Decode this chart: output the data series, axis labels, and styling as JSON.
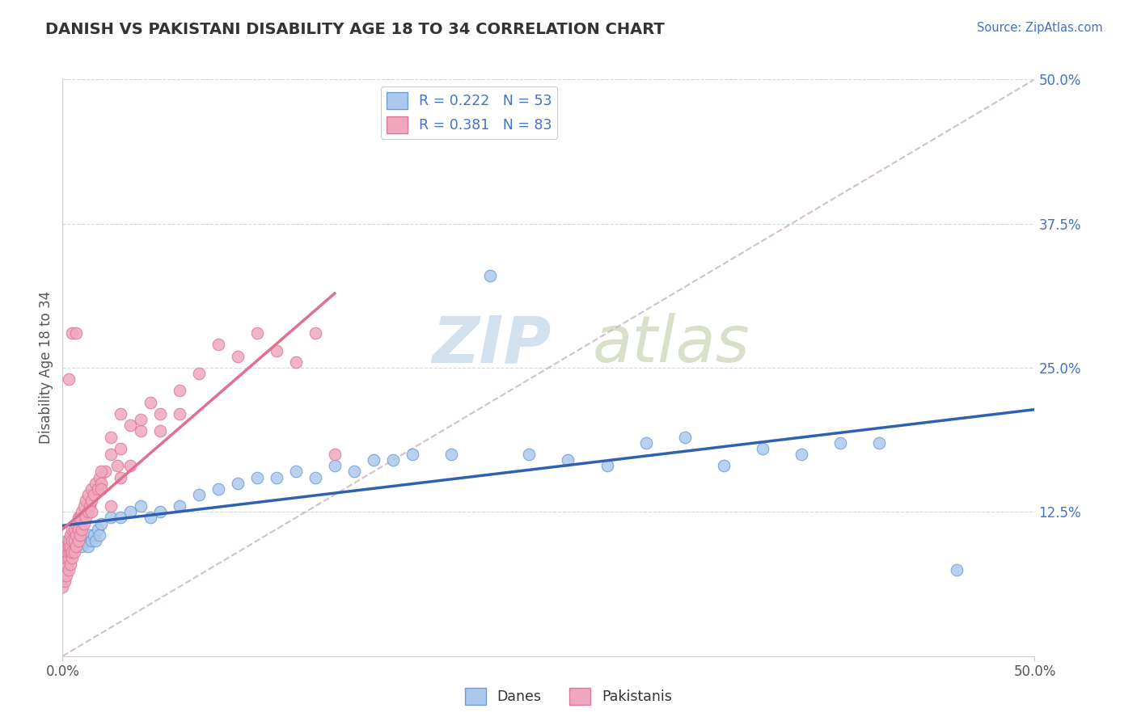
{
  "title": "DANISH VS PAKISTANI DISABILITY AGE 18 TO 34 CORRELATION CHART",
  "source_text": "Source: ZipAtlas.com",
  "ylabel": "Disability Age 18 to 34",
  "xlim": [
    0.0,
    0.5
  ],
  "ylim": [
    0.0,
    0.5
  ],
  "danes_color": "#adc8ed",
  "danes_edge": "#6a9fd8",
  "pakistanis_color": "#f0a8be",
  "pakistanis_edge": "#e07898",
  "danes_R": 0.222,
  "danes_N": 53,
  "pakistanis_R": 0.381,
  "pakistanis_N": 83,
  "legend_R_color": "#4472c4",
  "trend_danes_color": "#3060b0",
  "trend_pakistanis_color": "#e07090",
  "ref_line_color": "#d0b8c8",
  "watermark_zip_color": "#c5d5e8",
  "watermark_atlas_color": "#c8d8b8",
  "grid_color": "#d8d8d8",
  "danes_x": [
    0.001,
    0.002,
    0.003,
    0.004,
    0.005,
    0.005,
    0.006,
    0.007,
    0.008,
    0.009,
    0.01,
    0.011,
    0.012,
    0.013,
    0.014,
    0.015,
    0.016,
    0.017,
    0.018,
    0.019,
    0.02,
    0.025,
    0.03,
    0.035,
    0.04,
    0.045,
    0.05,
    0.06,
    0.07,
    0.08,
    0.09,
    0.1,
    0.11,
    0.12,
    0.13,
    0.14,
    0.15,
    0.16,
    0.17,
    0.18,
    0.2,
    0.22,
    0.24,
    0.26,
    0.28,
    0.3,
    0.32,
    0.34,
    0.36,
    0.38,
    0.4,
    0.42,
    0.46
  ],
  "danes_y": [
    0.095,
    0.1,
    0.095,
    0.09,
    0.1,
    0.105,
    0.095,
    0.1,
    0.105,
    0.1,
    0.095,
    0.1,
    0.1,
    0.095,
    0.105,
    0.1,
    0.105,
    0.1,
    0.11,
    0.105,
    0.115,
    0.12,
    0.12,
    0.125,
    0.13,
    0.12,
    0.125,
    0.13,
    0.14,
    0.145,
    0.15,
    0.155,
    0.155,
    0.16,
    0.155,
    0.165,
    0.16,
    0.17,
    0.17,
    0.175,
    0.175,
    0.33,
    0.175,
    0.17,
    0.165,
    0.185,
    0.19,
    0.165,
    0.18,
    0.175,
    0.185,
    0.185,
    0.075
  ],
  "pakistanis_x": [
    0.0,
    0.0,
    0.001,
    0.001,
    0.001,
    0.001,
    0.001,
    0.002,
    0.002,
    0.002,
    0.002,
    0.002,
    0.003,
    0.003,
    0.003,
    0.003,
    0.003,
    0.004,
    0.004,
    0.004,
    0.004,
    0.005,
    0.005,
    0.005,
    0.005,
    0.006,
    0.006,
    0.006,
    0.007,
    0.007,
    0.007,
    0.008,
    0.008,
    0.008,
    0.009,
    0.009,
    0.01,
    0.01,
    0.011,
    0.011,
    0.012,
    0.012,
    0.013,
    0.013,
    0.014,
    0.015,
    0.015,
    0.016,
    0.017,
    0.018,
    0.019,
    0.02,
    0.022,
    0.025,
    0.028,
    0.03,
    0.035,
    0.04,
    0.045,
    0.05,
    0.06,
    0.07,
    0.08,
    0.09,
    0.1,
    0.11,
    0.12,
    0.13,
    0.14,
    0.02,
    0.025,
    0.03,
    0.035,
    0.04,
    0.05,
    0.06,
    0.015,
    0.02,
    0.025,
    0.03,
    0.003,
    0.005,
    0.007
  ],
  "pakistanis_y": [
    0.06,
    0.07,
    0.065,
    0.075,
    0.08,
    0.085,
    0.09,
    0.07,
    0.08,
    0.085,
    0.09,
    0.095,
    0.075,
    0.085,
    0.09,
    0.095,
    0.1,
    0.08,
    0.09,
    0.095,
    0.105,
    0.085,
    0.09,
    0.1,
    0.11,
    0.09,
    0.1,
    0.11,
    0.095,
    0.105,
    0.115,
    0.1,
    0.11,
    0.12,
    0.105,
    0.12,
    0.11,
    0.125,
    0.115,
    0.13,
    0.12,
    0.135,
    0.125,
    0.14,
    0.13,
    0.135,
    0.145,
    0.14,
    0.15,
    0.145,
    0.155,
    0.15,
    0.16,
    0.175,
    0.165,
    0.18,
    0.2,
    0.195,
    0.22,
    0.21,
    0.23,
    0.245,
    0.27,
    0.26,
    0.28,
    0.265,
    0.255,
    0.28,
    0.175,
    0.16,
    0.19,
    0.21,
    0.165,
    0.205,
    0.195,
    0.21,
    0.125,
    0.145,
    0.13,
    0.155,
    0.24,
    0.28,
    0.28
  ]
}
